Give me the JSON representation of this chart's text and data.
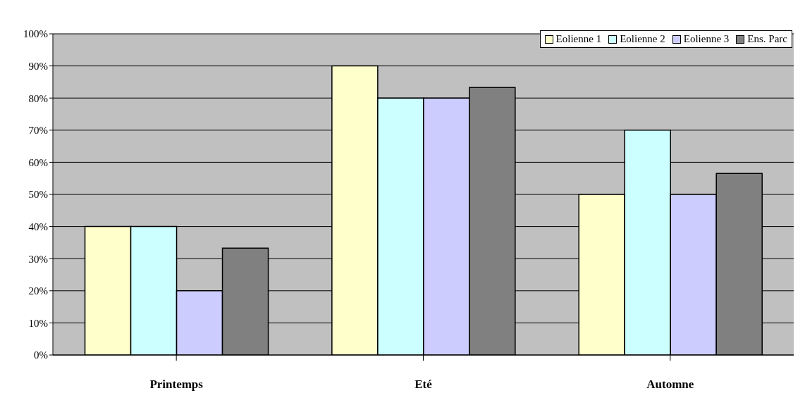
{
  "chart_data": {
    "type": "bar",
    "categories": [
      "Printemps",
      "Eté",
      "Automne"
    ],
    "series": [
      {
        "name": "Eolienne 1",
        "color": "#ffffcc",
        "values": [
          40,
          90,
          50
        ]
      },
      {
        "name": "Eolienne 2",
        "color": "#ccffff",
        "values": [
          40,
          80,
          70
        ]
      },
      {
        "name": "Eolienne 3",
        "color": "#ccccff",
        "values": [
          20,
          80,
          50
        ]
      },
      {
        "name": "Ens. Parc",
        "color": "#808080",
        "values": [
          33.3,
          83.3,
          56.5
        ]
      }
    ],
    "ylim": [
      0,
      100
    ],
    "yticks": [
      {
        "value": 0,
        "label": "0%"
      },
      {
        "value": 10,
        "label": "10%"
      },
      {
        "value": 20,
        "label": "20%"
      },
      {
        "value": 30,
        "label": "30%"
      },
      {
        "value": 40,
        "label": "40%"
      },
      {
        "value": 50,
        "label": "50%"
      },
      {
        "value": 60,
        "label": "60%"
      },
      {
        "value": 70,
        "label": "70%"
      },
      {
        "value": 80,
        "label": "80%"
      },
      {
        "value": 90,
        "label": "90%"
      },
      {
        "value": 100,
        "label": "100%"
      }
    ],
    "grid": "y",
    "legend": "top right"
  }
}
